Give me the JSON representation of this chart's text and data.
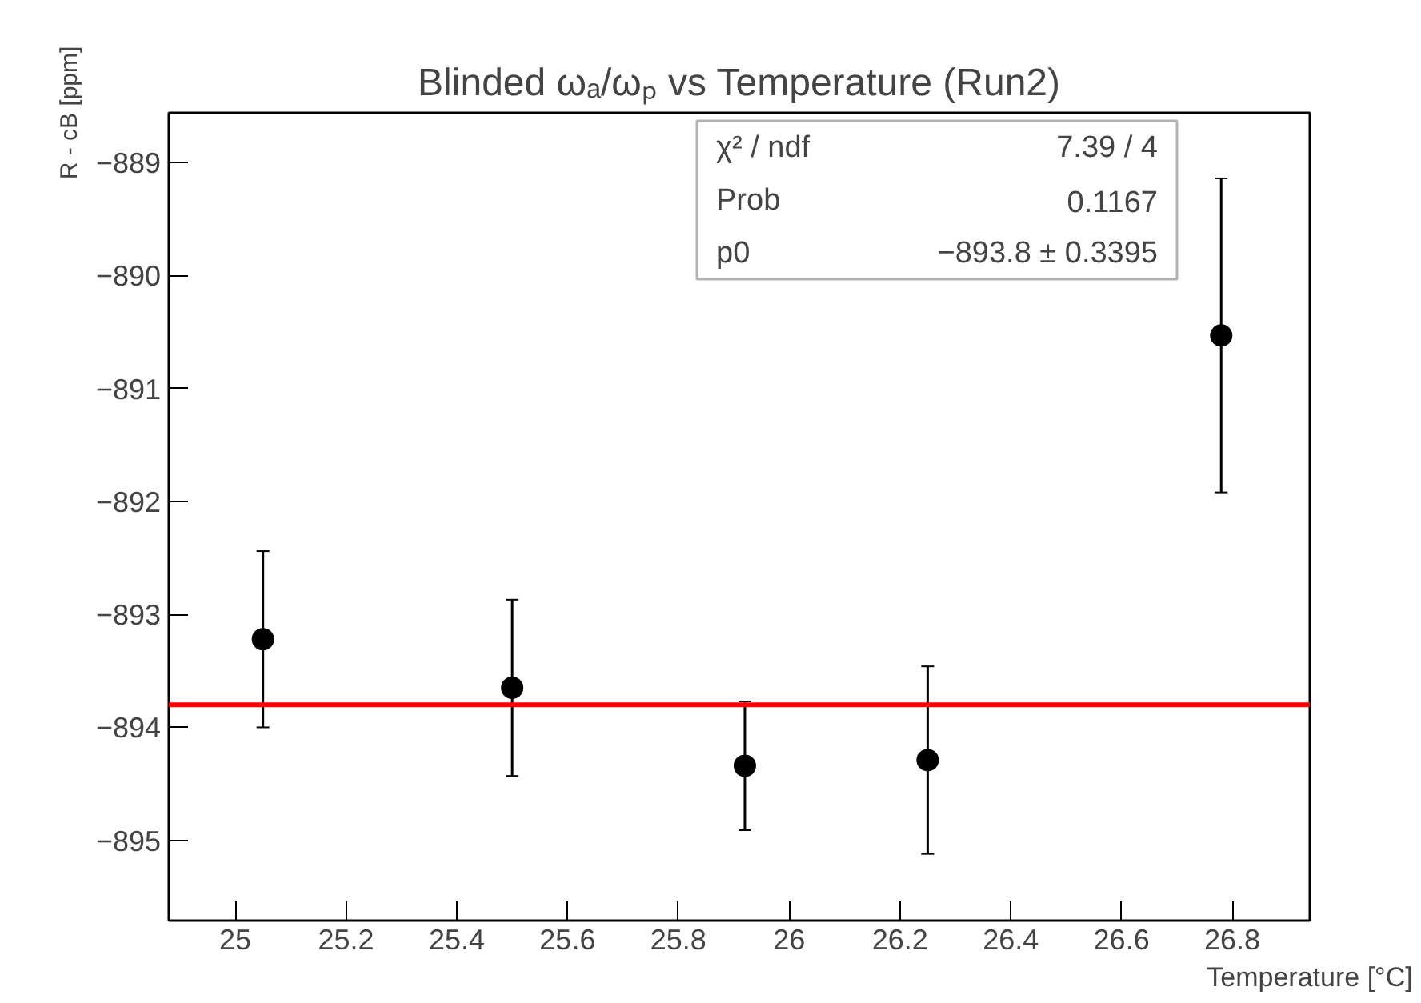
{
  "chart_data": {
    "type": "scatter",
    "title": "Blinded ωₐ/ωₚ vs Temperature (Run2)",
    "xlabel": "Temperature [°C]",
    "ylabel": "R - cB [ppm]",
    "x": [
      25.05,
      25.5,
      25.92,
      26.25,
      26.78
    ],
    "series": [
      {
        "color": "#000000",
        "values": [
          -893.22,
          -893.65,
          -894.34,
          -894.29,
          -890.53
        ],
        "errors": [
          0.78,
          0.78,
          0.57,
          0.83,
          1.39
        ]
      }
    ],
    "marker": "circle",
    "xlim": [
      24.88,
      26.94
    ],
    "ylim": [
      -895.71,
      -888.56
    ],
    "xticks": [
      25,
      25.2,
      25.4,
      25.6,
      25.8,
      26,
      26.2,
      26.4,
      26.6,
      26.8
    ],
    "yticks": [
      {
        "value": -895,
        "label": "−895"
      },
      {
        "value": -894,
        "label": "−894"
      },
      {
        "value": -893,
        "label": "−893"
      },
      {
        "value": -892,
        "label": "−892"
      },
      {
        "value": -891,
        "label": "−891"
      },
      {
        "value": -890,
        "label": "−890"
      },
      {
        "value": -889,
        "label": "−889"
      }
    ],
    "ref_lines": [
      {
        "axis": "y",
        "value": -893.8,
        "label": null,
        "color": "#ff0000",
        "line_style": "solid"
      }
    ],
    "annotations": [
      "χ² / ndf",
      "7.39 / 4",
      "Prob",
      "0.1167",
      "p0",
      "−893.8 ± 0.3395"
    ],
    "grid": false
  }
}
